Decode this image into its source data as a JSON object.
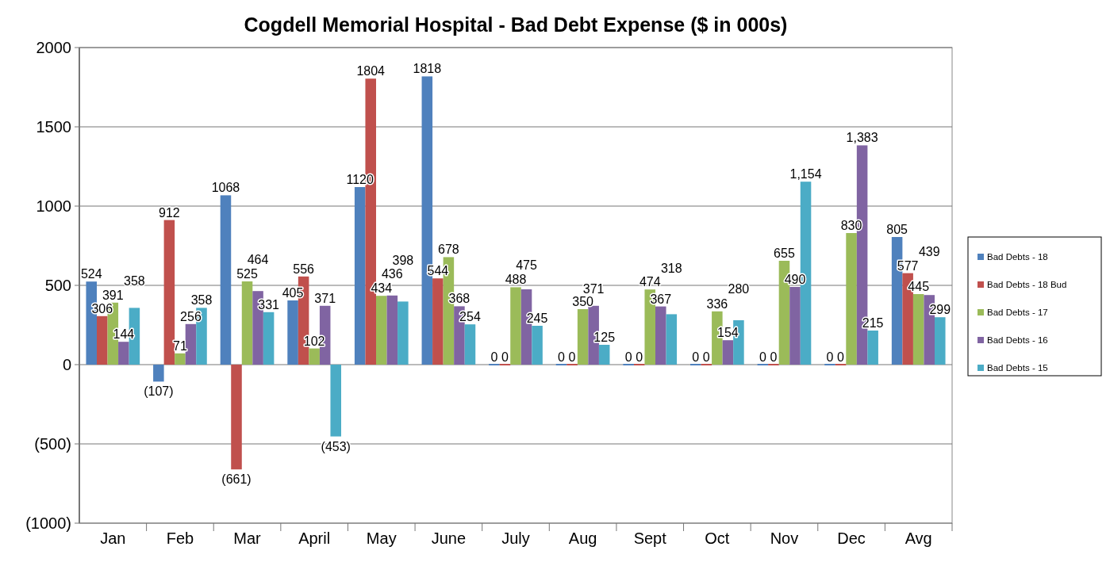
{
  "chart_data": {
    "type": "bar",
    "title": "Cogdell Memorial Hospital - Bad Debt Expense ($ in 000s)",
    "categories": [
      "Jan",
      "Feb",
      "Mar",
      "April",
      "May",
      "June",
      "July",
      "Aug",
      "Sept",
      "Oct",
      "Nov",
      "Dec",
      "Avg"
    ],
    "series": [
      {
        "name": "Bad Debts - 18",
        "color": "#4f81bd",
        "values": [
          524,
          -107,
          1068,
          405,
          1120,
          1818,
          0,
          0,
          0,
          0,
          0,
          0,
          805
        ],
        "value_labels": [
          "524",
          "(107)",
          "1068",
          "405",
          "1120",
          "1818",
          "0",
          "0",
          "0",
          "0",
          "0",
          "0",
          "805"
        ]
      },
      {
        "name": "Bad Debts - 18 Bud",
        "color": "#c0504d",
        "values": [
          306,
          912,
          -661,
          556,
          1804,
          544,
          0,
          0,
          0,
          0,
          0,
          0,
          577
        ],
        "value_labels": [
          "306",
          "912",
          "(661)",
          "556",
          "1804",
          "544",
          "0",
          "0",
          "0",
          "0",
          "0",
          "0",
          "577"
        ]
      },
      {
        "name": "Bad Debts - 17",
        "color": "#9bbb59",
        "values": [
          391,
          71,
          525,
          102,
          434,
          678,
          488,
          350,
          474,
          336,
          655,
          830,
          445
        ],
        "value_labels": [
          "391",
          "71",
          "525",
          "102",
          "434",
          "678",
          "488",
          "350",
          "474",
          "336",
          "655",
          "830",
          "445"
        ]
      },
      {
        "name": "Bad Debts - 16",
        "color": "#8064a2",
        "values": [
          144,
          256,
          464,
          371,
          436,
          368,
          475,
          371,
          367,
          154,
          490,
          1383,
          439
        ],
        "value_labels": [
          "144",
          "256",
          "464",
          "371",
          "436",
          "368",
          "475",
          "371",
          "367",
          "154",
          "490",
          "1,383",
          "439"
        ]
      },
      {
        "name": "Bad Debts - 15",
        "color": "#4bacc6",
        "values": [
          358,
          358,
          331,
          -453,
          398,
          254,
          245,
          125,
          318,
          280,
          1154,
          215,
          299
        ],
        "value_labels": [
          "358",
          "358",
          "331",
          "(453)",
          "398",
          "254",
          "245",
          "125",
          "318",
          "280",
          "1,154",
          "215",
          "299"
        ]
      }
    ],
    "ylim": [
      -1000,
      2000
    ],
    "yticks": [
      {
        "value": -1000,
        "label": "(1000)"
      },
      {
        "value": -500,
        "label": "(500)"
      },
      0,
      500,
      1000,
      1500,
      2000
    ],
    "grid": "y",
    "legend": "right"
  }
}
